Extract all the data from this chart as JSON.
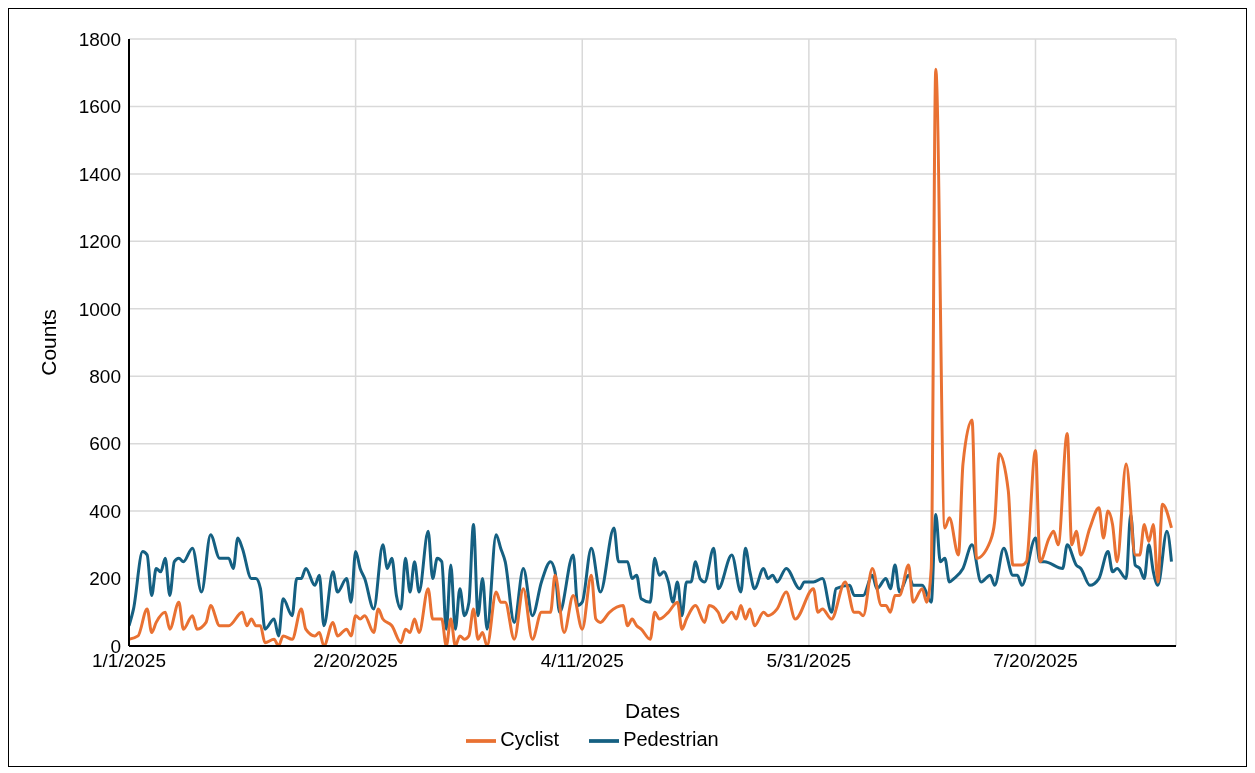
{
  "chart_data": {
    "type": "line",
    "xlabel": "Dates",
    "ylabel": "Counts",
    "xlim": [
      "2025-01-01",
      "2025-08-20"
    ],
    "xticks": [
      {
        "value": "2025-01-01",
        "label": "1/1/2025"
      },
      {
        "value": "2025-02-20",
        "label": "2/20/2025"
      },
      {
        "value": "2025-04-11",
        "label": "4/11/2025"
      },
      {
        "value": "2025-05-31",
        "label": "5/31/2025"
      },
      {
        "value": "2025-07-20",
        "label": "7/20/2025"
      }
    ],
    "ylim": [
      0,
      1800
    ],
    "yticks": [
      0,
      200,
      400,
      600,
      800,
      1000,
      1200,
      1400,
      1600,
      1800
    ],
    "grid": true,
    "legend": "bottom",
    "series": [
      {
        "name": "Pedestrian",
        "color": "#156082",
        "x": [
          "2025-01-01",
          "2025-01-02",
          "2025-01-04",
          "2025-01-05",
          "2025-01-06",
          "2025-01-07",
          "2025-01-08",
          "2025-01-09",
          "2025-01-10",
          "2025-01-11",
          "2025-01-12",
          "2025-01-13",
          "2025-01-15",
          "2025-01-17",
          "2025-01-19",
          "2025-01-21",
          "2025-01-23",
          "2025-01-24",
          "2025-01-25",
          "2025-01-26",
          "2025-01-28",
          "2025-01-29",
          "2025-01-30",
          "2025-01-31",
          "2025-02-02",
          "2025-02-03",
          "2025-02-04",
          "2025-02-06",
          "2025-02-07",
          "2025-02-08",
          "2025-02-09",
          "2025-02-11",
          "2025-02-12",
          "2025-02-13",
          "2025-02-15",
          "2025-02-16",
          "2025-02-18",
          "2025-02-19",
          "2025-02-20",
          "2025-02-21",
          "2025-02-22",
          "2025-02-24",
          "2025-02-26",
          "2025-02-27",
          "2025-02-28",
          "2025-03-01",
          "2025-03-02",
          "2025-03-03",
          "2025-03-04",
          "2025-03-05",
          "2025-03-06",
          "2025-03-08",
          "2025-03-09",
          "2025-03-10",
          "2025-03-11",
          "2025-03-12",
          "2025-03-13",
          "2025-03-14",
          "2025-03-15",
          "2025-03-16",
          "2025-03-17",
          "2025-03-18",
          "2025-03-19",
          "2025-03-20",
          "2025-03-21",
          "2025-03-23",
          "2025-03-24",
          "2025-03-25",
          "2025-03-27",
          "2025-03-29",
          "2025-03-31",
          "2025-04-02",
          "2025-04-04",
          "2025-04-05",
          "2025-04-06",
          "2025-04-09",
          "2025-04-10",
          "2025-04-11",
          "2025-04-13",
          "2025-04-15",
          "2025-04-18",
          "2025-04-19",
          "2025-04-21",
          "2025-04-22",
          "2025-04-23",
          "2025-04-24",
          "2025-04-26",
          "2025-04-27",
          "2025-04-28",
          "2025-04-29",
          "2025-04-30",
          "2025-05-01",
          "2025-05-02",
          "2025-05-03",
          "2025-05-04",
          "2025-05-05",
          "2025-05-06",
          "2025-05-07",
          "2025-05-08",
          "2025-05-10",
          "2025-05-11",
          "2025-05-14",
          "2025-05-16",
          "2025-05-17",
          "2025-05-18",
          "2025-05-19",
          "2025-05-21",
          "2025-05-22",
          "2025-05-23",
          "2025-05-24",
          "2025-05-26",
          "2025-05-29",
          "2025-05-30",
          "2025-06-01",
          "2025-06-03",
          "2025-06-05",
          "2025-06-06",
          "2025-06-09",
          "2025-06-10",
          "2025-06-12",
          "2025-06-14",
          "2025-06-15",
          "2025-06-17",
          "2025-06-18",
          "2025-06-19",
          "2025-06-20",
          "2025-06-22",
          "2025-06-23",
          "2025-06-25",
          "2025-06-27",
          "2025-06-28",
          "2025-06-29",
          "2025-06-30",
          "2025-07-01",
          "2025-07-02",
          "2025-07-04",
          "2025-07-06",
          "2025-07-08",
          "2025-07-10",
          "2025-07-11",
          "2025-07-13",
          "2025-07-15",
          "2025-07-16",
          "2025-07-17",
          "2025-07-20",
          "2025-07-21",
          "2025-07-22",
          "2025-07-26",
          "2025-07-27",
          "2025-07-29",
          "2025-07-30",
          "2025-08-01",
          "2025-08-03",
          "2025-08-05",
          "2025-08-06",
          "2025-08-07",
          "2025-08-09",
          "2025-08-10",
          "2025-08-11",
          "2025-08-12",
          "2025-08-13",
          "2025-08-14",
          "2025-08-15",
          "2025-08-16",
          "2025-08-18",
          "2025-08-19"
        ],
        "values": [
          60,
          110,
          280,
          270,
          150,
          230,
          220,
          260,
          150,
          250,
          260,
          250,
          290,
          160,
          330,
          260,
          260,
          230,
          320,
          290,
          200,
          200,
          170,
          50,
          80,
          30,
          140,
          90,
          200,
          200,
          230,
          180,
          210,
          60,
          220,
          160,
          200,
          130,
          280,
          230,
          200,
          110,
          300,
          230,
          260,
          150,
          110,
          260,
          160,
          250,
          160,
          340,
          200,
          260,
          250,
          50,
          240,
          50,
          170,
          90,
          130,
          360,
          90,
          200,
          50,
          330,
          290,
          250,
          70,
          230,
          90,
          190,
          250,
          220,
          100,
          270,
          120,
          130,
          290,
          160,
          350,
          250,
          250,
          200,
          210,
          140,
          130,
          260,
          210,
          220,
          190,
          130,
          190,
          90,
          190,
          190,
          250,
          200,
          190,
          290,
          170,
          270,
          160,
          290,
          220,
          170,
          230,
          200,
          210,
          190,
          230,
          170,
          190,
          190,
          200,
          100,
          170,
          180,
          150,
          150,
          210,
          170,
          200,
          170,
          240,
          160,
          210,
          180,
          180,
          130,
          390,
          250,
          260,
          190,
          200,
          230,
          300,
          190,
          210,
          180,
          290,
          210,
          210,
          180,
          320,
          250,
          250,
          230,
          300,
          240,
          230,
          180,
          200,
          280,
          220,
          230,
          200,
          390,
          240,
          230,
          200,
          300,
          220,
          180,
          340,
          250
        ]
      },
      {
        "name": "Cyclist",
        "color": "#e97132",
        "x": [
          "2025-01-01",
          "2025-01-03",
          "2025-01-05",
          "2025-01-06",
          "2025-01-07",
          "2025-01-09",
          "2025-01-10",
          "2025-01-12",
          "2025-01-13",
          "2025-01-15",
          "2025-01-16",
          "2025-01-18",
          "2025-01-19",
          "2025-01-21",
          "2025-01-23",
          "2025-01-26",
          "2025-01-27",
          "2025-01-28",
          "2025-01-29",
          "2025-01-30",
          "2025-01-31",
          "2025-02-02",
          "2025-02-03",
          "2025-02-04",
          "2025-02-06",
          "2025-02-08",
          "2025-02-09",
          "2025-02-11",
          "2025-02-12",
          "2025-02-13",
          "2025-02-15",
          "2025-02-16",
          "2025-02-18",
          "2025-02-19",
          "2025-02-20",
          "2025-02-21",
          "2025-02-22",
          "2025-02-24",
          "2025-02-25",
          "2025-02-26",
          "2025-02-28",
          "2025-03-02",
          "2025-03-03",
          "2025-03-04",
          "2025-03-05",
          "2025-03-06",
          "2025-03-08",
          "2025-03-09",
          "2025-03-10",
          "2025-03-11",
          "2025-03-12",
          "2025-03-13",
          "2025-03-14",
          "2025-03-15",
          "2025-03-16",
          "2025-03-17",
          "2025-03-18",
          "2025-03-19",
          "2025-03-20",
          "2025-03-21",
          "2025-03-23",
          "2025-03-24",
          "2025-03-25",
          "2025-03-27",
          "2025-03-29",
          "2025-03-31",
          "2025-04-02",
          "2025-04-04",
          "2025-04-05",
          "2025-04-07",
          "2025-04-09",
          "2025-04-11",
          "2025-04-13",
          "2025-04-14",
          "2025-04-15",
          "2025-04-17",
          "2025-04-20",
          "2025-04-21",
          "2025-04-22",
          "2025-04-23",
          "2025-04-24",
          "2025-04-26",
          "2025-04-27",
          "2025-04-28",
          "2025-04-30",
          "2025-05-02",
          "2025-05-03",
          "2025-05-04",
          "2025-05-06",
          "2025-05-08",
          "2025-05-09",
          "2025-05-11",
          "2025-05-12",
          "2025-05-14",
          "2025-05-15",
          "2025-05-16",
          "2025-05-17",
          "2025-05-18",
          "2025-05-19",
          "2025-05-21",
          "2025-05-22",
          "2025-05-24",
          "2025-05-26",
          "2025-05-28",
          "2025-06-01",
          "2025-06-02",
          "2025-06-03",
          "2025-06-05",
          "2025-06-08",
          "2025-06-10",
          "2025-06-11",
          "2025-06-12",
          "2025-06-14",
          "2025-06-16",
          "2025-06-17",
          "2025-06-18",
          "2025-06-19",
          "2025-06-20",
          "2025-06-22",
          "2025-06-23",
          "2025-06-25",
          "2025-06-26",
          "2025-06-27",
          "2025-06-28",
          "2025-06-30",
          "2025-07-01",
          "2025-07-03",
          "2025-07-04",
          "2025-07-06",
          "2025-07-07",
          "2025-07-10",
          "2025-07-11",
          "2025-07-12",
          "2025-07-14",
          "2025-07-15",
          "2025-07-17",
          "2025-07-18",
          "2025-07-20",
          "2025-07-21",
          "2025-07-23",
          "2025-07-24",
          "2025-07-25",
          "2025-07-27",
          "2025-07-28",
          "2025-07-29",
          "2025-07-30",
          "2025-08-01",
          "2025-08-03",
          "2025-08-04",
          "2025-08-05",
          "2025-08-06",
          "2025-08-07",
          "2025-08-09",
          "2025-08-11",
          "2025-08-12",
          "2025-08-13",
          "2025-08-14",
          "2025-08-15",
          "2025-08-16",
          "2025-08-17",
          "2025-08-19"
        ],
        "values": [
          20,
          30,
          110,
          40,
          70,
          100,
          50,
          130,
          50,
          90,
          50,
          70,
          120,
          60,
          60,
          100,
          60,
          80,
          60,
          60,
          10,
          20,
          0,
          30,
          20,
          110,
          50,
          30,
          40,
          0,
          70,
          30,
          50,
          30,
          90,
          80,
          90,
          40,
          110,
          80,
          60,
          10,
          50,
          40,
          80,
          40,
          170,
          80,
          80,
          80,
          0,
          80,
          0,
          30,
          20,
          30,
          110,
          20,
          40,
          0,
          160,
          130,
          130,
          20,
          170,
          20,
          100,
          100,
          210,
          40,
          150,
          50,
          210,
          80,
          70,
          100,
          120,
          60,
          80,
          60,
          50,
          20,
          100,
          80,
          100,
          130,
          50,
          80,
          120,
          70,
          120,
          100,
          70,
          100,
          80,
          120,
          80,
          110,
          60,
          100,
          90,
          110,
          160,
          80,
          170,
          100,
          110,
          80,
          190,
          100,
          100,
          90,
          230,
          120,
          120,
          100,
          150,
          150,
          240,
          130,
          170,
          130,
          230,
          1710,
          350,
          380,
          270,
          540,
          670,
          260,
          310,
          370,
          570,
          460,
          240,
          240,
          250,
          580,
          250,
          320,
          340,
          300,
          630,
          300,
          340,
          270,
          350,
          410,
          320,
          400,
          360,
          250,
          540,
          270,
          270,
          360,
          310,
          360,
          190,
          420,
          350
        ]
      }
    ]
  }
}
